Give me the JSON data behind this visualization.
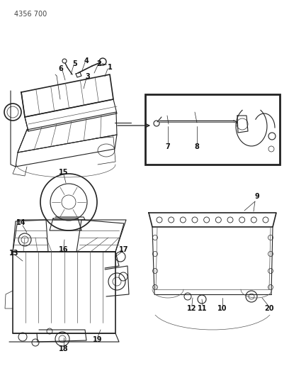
{
  "title_code": "4356 700",
  "background_color": "#ffffff",
  "line_color": "#444444",
  "label_color": "#111111",
  "figsize": [
    4.08,
    5.33
  ],
  "dpi": 100,
  "line_color_dark": "#222222",
  "line_color_mid": "#555555",
  "line_color_light": "#888888"
}
